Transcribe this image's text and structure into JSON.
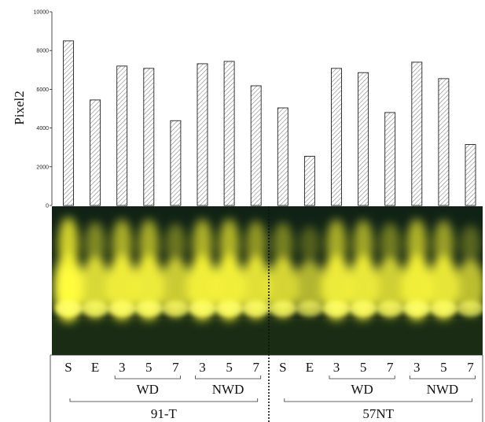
{
  "chart_data": {
    "type": "bar",
    "ylabel": "Pixel2",
    "ylim": [
      0,
      10000
    ],
    "yticks": [
      0,
      2000,
      4000,
      6000,
      8000,
      10000
    ],
    "grid": false,
    "bar_fill": "hatched",
    "values": [
      8500,
      5450,
      7200,
      7080,
      4380,
      7320,
      7440,
      6180,
      5040,
      2540,
      7080,
      6860,
      4800,
      7400,
      6550,
      3150
    ],
    "lane_labels": [
      "S",
      "E",
      "3",
      "5",
      "7",
      "3",
      "5",
      "7",
      "S",
      "E",
      "3",
      "5",
      "7",
      "3",
      "5",
      "7"
    ],
    "groups": [
      {
        "label": "WD",
        "first": 2,
        "last": 4
      },
      {
        "label": "NWD",
        "first": 5,
        "last": 7
      },
      {
        "label": "WD",
        "first": 10,
        "last": 12
      },
      {
        "label": "NWD",
        "first": 13,
        "last": 15
      }
    ],
    "samples": [
      {
        "label": "91-T",
        "first": 0,
        "last": 7
      },
      {
        "label": "57NT",
        "first": 8,
        "last": 15
      }
    ]
  },
  "colors": {
    "gel_background": "#0f2215",
    "band": "#fffb3c",
    "bar_stroke": "#222222",
    "hatch": "#777777"
  }
}
